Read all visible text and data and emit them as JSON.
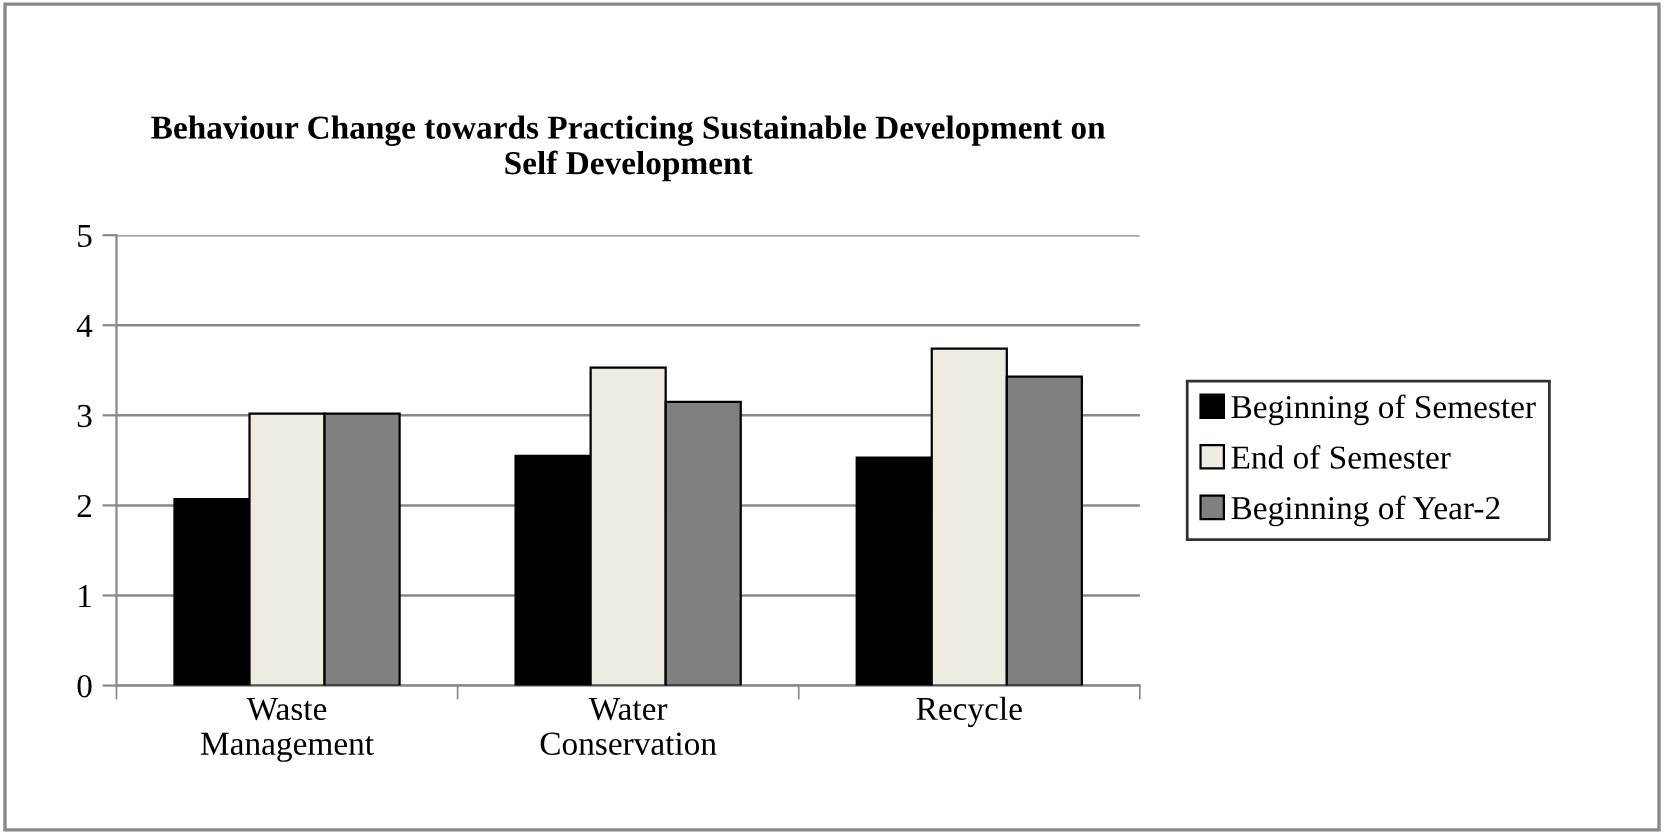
{
  "chart_data": {
    "type": "bar",
    "title": "Behaviour Change towards Practicing Sustainable Development on\nSelf Development",
    "categories": [
      "Waste\nManagement",
      "Water\nConservation",
      "Recycle"
    ],
    "series": [
      {
        "name": "Beginning of Semester",
        "color": "#000000",
        "values": [
          2.07,
          2.55,
          2.53
        ]
      },
      {
        "name": "End of Semester",
        "color": "#eeebe0",
        "values": [
          3.02,
          3.53,
          3.74
        ]
      },
      {
        "name": "Beginning of Year-2",
        "color": "#808080",
        "values": [
          3.02,
          3.15,
          3.43
        ]
      }
    ],
    "ylim": [
      0,
      5
    ],
    "yticks": [
      0,
      1,
      2,
      3,
      4,
      5
    ],
    "grid": "y",
    "legend": "right"
  }
}
